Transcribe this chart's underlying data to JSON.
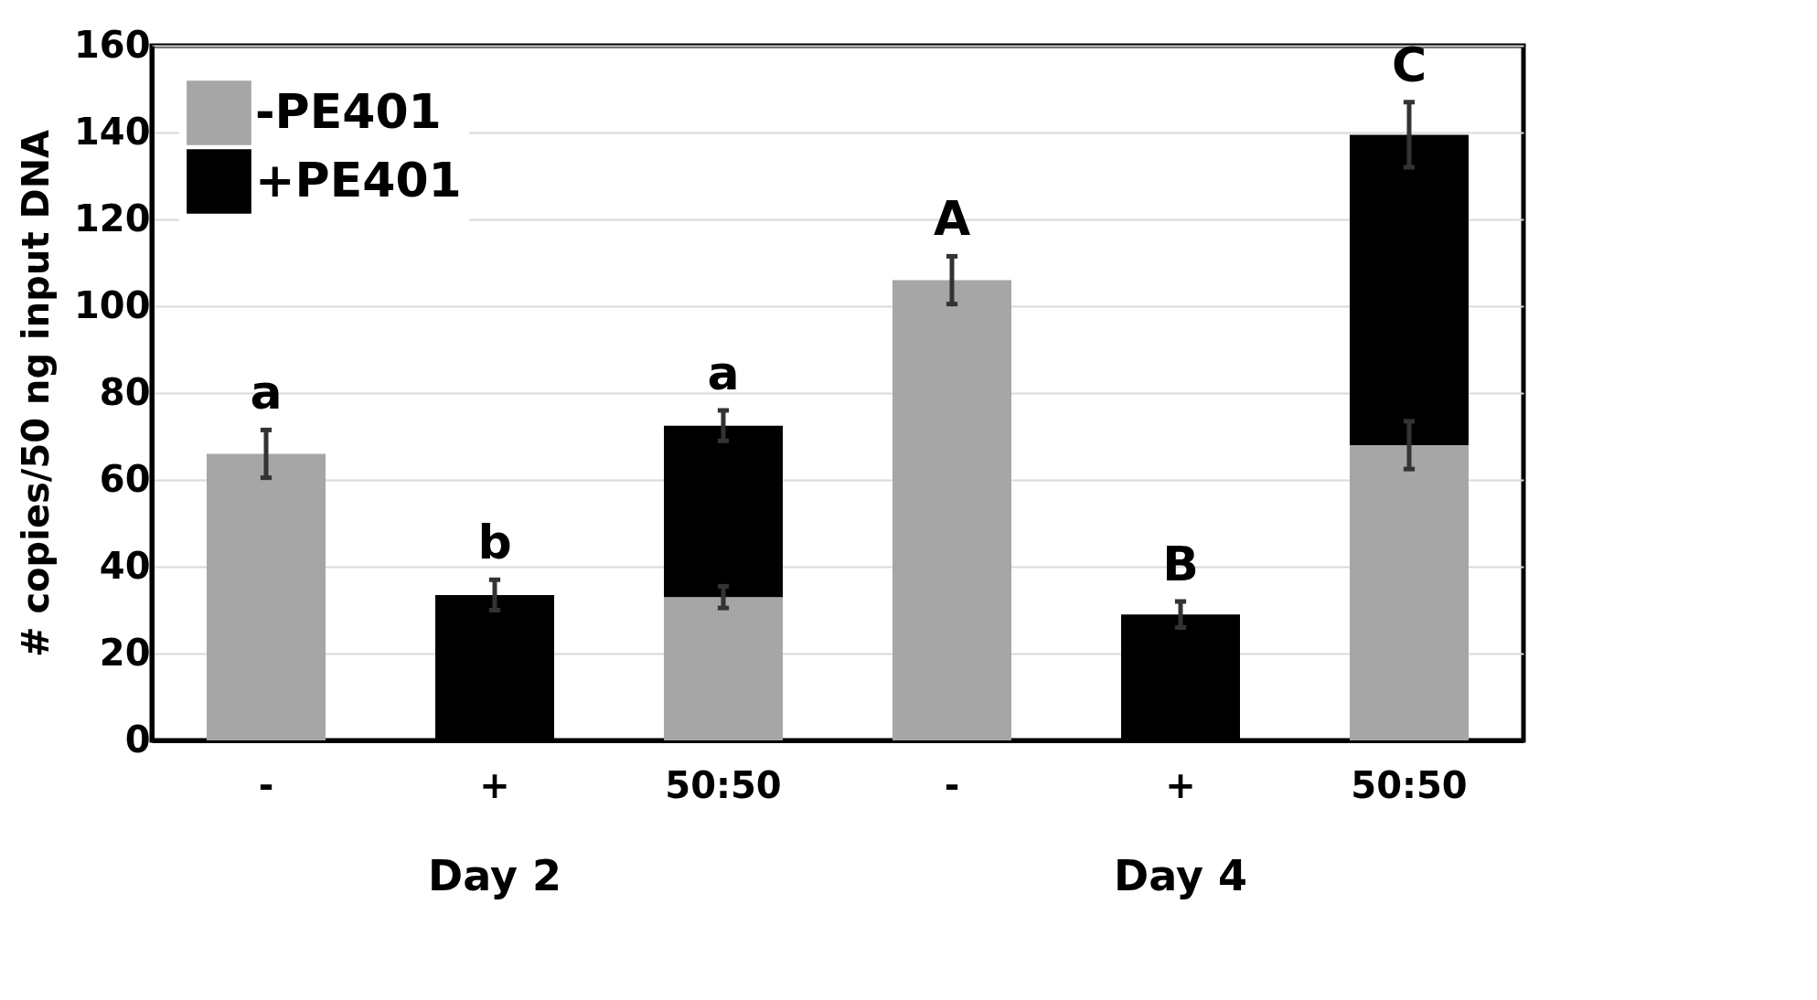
{
  "chart_data": {
    "type": "bar",
    "stacked": true,
    "ylabel": "# copies/50 ng input DNA",
    "categories": [
      "-",
      "+",
      "50:50",
      "-",
      "+",
      "50:50"
    ],
    "series": [
      {
        "name": "-PE401",
        "color": "#a6a6a6",
        "values": [
          66,
          null,
          33,
          106,
          null,
          68
        ],
        "errors": [
          5.5,
          null,
          2.5,
          5.5,
          null,
          5.5
        ]
      },
      {
        "name": "+PE401",
        "color": "#000000",
        "values": [
          null,
          33.5,
          39.5,
          null,
          29,
          71.5
        ],
        "errors": [
          null,
          3.5,
          3.5,
          null,
          3,
          7.5
        ]
      }
    ],
    "annotations": [
      "a",
      "b",
      "a",
      "A",
      "B",
      "C",
      "Day 2",
      "Day 4"
    ],
    "ylim": [
      0,
      160
    ],
    "yticks": [
      0,
      20,
      40,
      60,
      80,
      100,
      120,
      140,
      160
    ],
    "grid": "y",
    "legend": "top left"
  }
}
